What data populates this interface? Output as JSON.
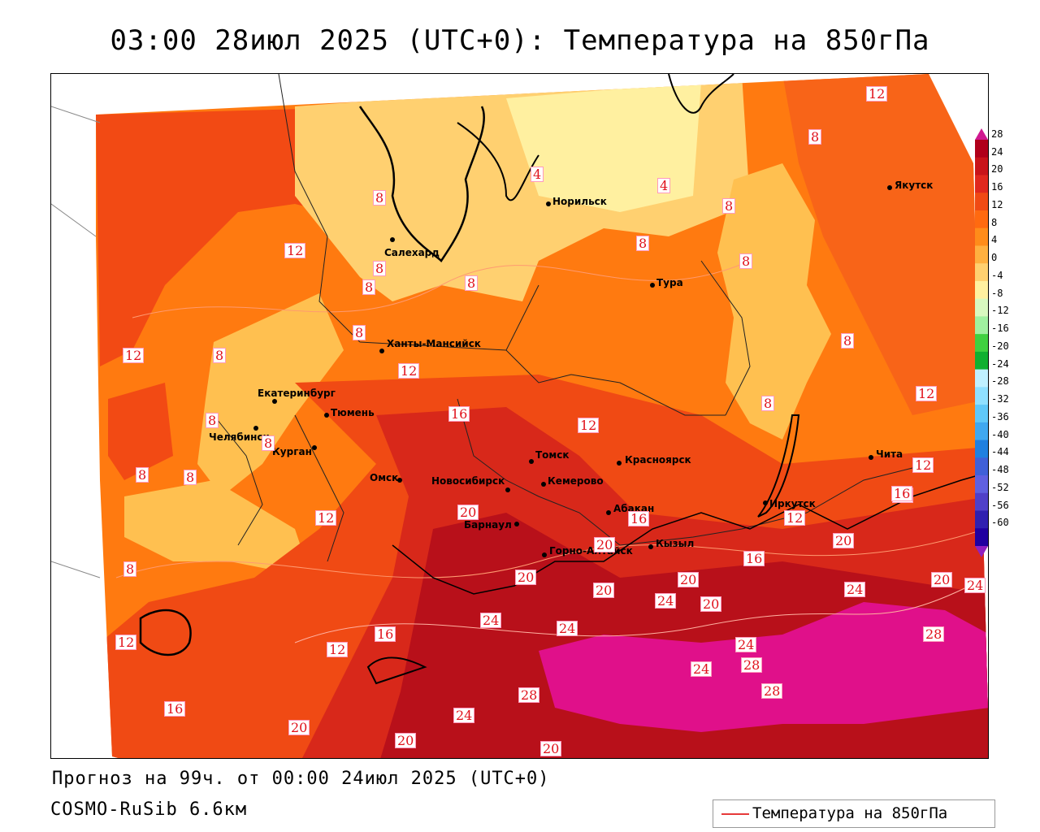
{
  "title": "03:00 28июл 2025 (UTC+0): Температура на 850гПа",
  "footer": {
    "forecast": "Прогноз на 99ч. от 00:00 24июл 2025 (UTC+0)",
    "model": "COSMO-RuSib 6.6км"
  },
  "legend": {
    "label": "Температура на 850гПа",
    "line_color": "#e63a3a"
  },
  "colorbar": {
    "levels": [
      "28",
      "24",
      "20",
      "16",
      "12",
      "8",
      "4",
      "0",
      "-4",
      "-8",
      "-12",
      "-16",
      "-20",
      "-24",
      "-28",
      "-32",
      "-36",
      "-40",
      "-44",
      "-48",
      "-52",
      "-56",
      "-60"
    ],
    "colors": [
      "#b0001a",
      "#c8141a",
      "#e0281e",
      "#f04a14",
      "#ff6a10",
      "#ff8c1a",
      "#ffb040",
      "#ffd070",
      "#fff0a0",
      "#d8f8c0",
      "#a0f0a0",
      "#40d040",
      "#10b030",
      "#c0f0ff",
      "#90e0ff",
      "#60c8f8",
      "#40a8f0",
      "#2080e0",
      "#4060d8",
      "#6060e0",
      "#5040c8",
      "#3020b0",
      "#2000a0"
    ],
    "top_color": "#d01890",
    "bottom_color": "#9020c0"
  },
  "cities": [
    {
      "name": "Якутск"
    },
    {
      "name": "Норильск"
    },
    {
      "name": "Салехард"
    },
    {
      "name": "Тура"
    },
    {
      "name": "Ханты-Мансийск"
    },
    {
      "name": "Екатеринбург"
    },
    {
      "name": "Тюмень"
    },
    {
      "name": "Челябинск"
    },
    {
      "name": "Курган"
    },
    {
      "name": "Омск"
    },
    {
      "name": "Новосибирск"
    },
    {
      "name": "Томск"
    },
    {
      "name": "Кемерово"
    },
    {
      "name": "Красноярск"
    },
    {
      "name": "Барнаул"
    },
    {
      "name": "Абакан"
    },
    {
      "name": "Горно-Алтайск"
    },
    {
      "name": "Кызыл"
    },
    {
      "name": "Иркутск"
    },
    {
      "name": "Чита"
    }
  ],
  "contour_labels": [
    "12",
    "8",
    "4",
    "4",
    "8",
    "8",
    "8",
    "12",
    "8",
    "8",
    "8",
    "8",
    "12",
    "8",
    "12",
    "8",
    "8",
    "12",
    "8",
    "12",
    "16",
    "12",
    "8",
    "8",
    "8",
    "8",
    "12",
    "20",
    "16",
    "12",
    "16",
    "20",
    "16",
    "20",
    "20",
    "20",
    "24",
    "20",
    "20",
    "24",
    "24",
    "24",
    "24",
    "28",
    "28",
    "28",
    "28",
    "24",
    "24",
    "20",
    "20",
    "16",
    "12",
    "8",
    "16",
    "20",
    "12",
    "16",
    "20",
    "24"
  ]
}
